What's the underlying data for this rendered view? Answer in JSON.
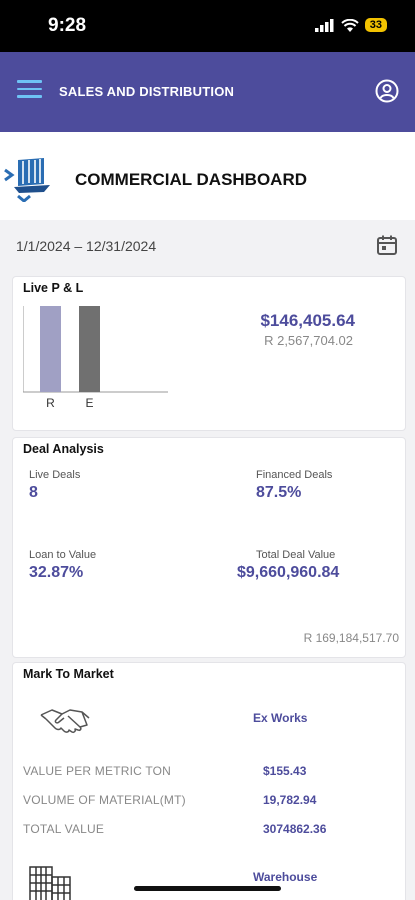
{
  "status_bar": {
    "time": "9:28",
    "battery": "33",
    "icons": [
      "signal-icon",
      "wifi-icon",
      "battery-icon"
    ]
  },
  "app_bar": {
    "title": "SALES AND DISTRIBUTION",
    "menu_icon": "hamburger-icon",
    "account_icon": "account-circle-icon",
    "color": "#4d4c9c"
  },
  "brand": {
    "title": "COMMERCIAL DASHBOARD",
    "logo_icon": "ship-logo-icon"
  },
  "date_filter": {
    "range": "1/1/2024 – 12/31/2024",
    "icon": "calendar-icon"
  },
  "live_pl": {
    "title": "Live P & L",
    "value": "$146,405.64",
    "sub_value": "R 2,567,704.02",
    "chart_data": {
      "type": "bar",
      "categories": [
        "R",
        "E"
      ],
      "values": [
        1.0,
        1.0
      ],
      "colors": [
        "#a0a0c4",
        "#707070"
      ]
    }
  },
  "deal_analysis": {
    "title": "Deal Analysis",
    "live_deals_label": "Live Deals",
    "live_deals_value": "8",
    "financed_deals_label": "Financed Deals",
    "financed_deals_value": "87.5%",
    "ltv_label": "Loan to Value",
    "ltv_value": "32.87%",
    "total_deal_label": "Total Deal Value",
    "total_deal_value": "$9,660,960.84",
    "footer_value": "R 169,184,517.70"
  },
  "mark_to_market": {
    "title": "Mark To Market",
    "basis": "Ex Works",
    "rows": [
      {
        "label": "VALUE PER METRIC TON",
        "value": "$155.43"
      },
      {
        "label": "VOLUME OF MATERIAL(MT)",
        "value": "19,782.94"
      },
      {
        "label": "TOTAL VALUE",
        "value": "3074862.36"
      }
    ],
    "basis2": "Warehouse",
    "icons": [
      "handshake-icon",
      "building-icon"
    ]
  }
}
